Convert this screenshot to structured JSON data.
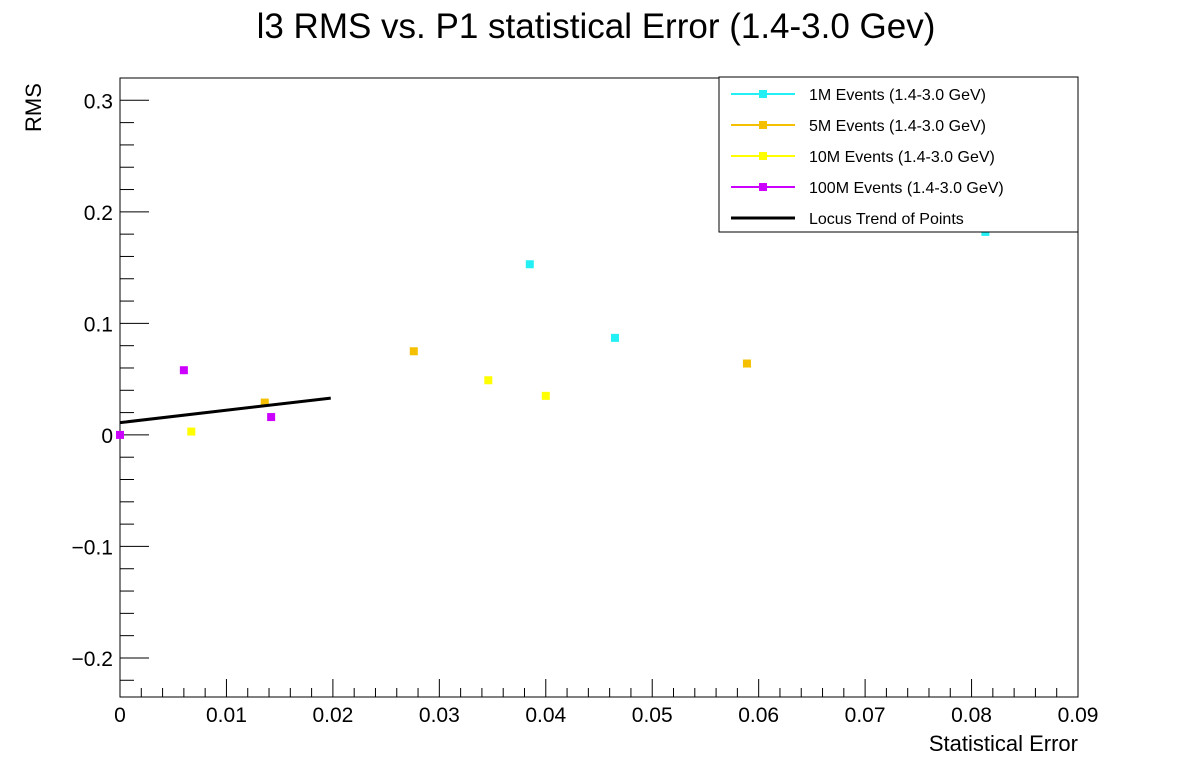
{
  "chart_data": {
    "type": "scatter",
    "title": "l3 RMS vs. P1 statistical Error (1.4-3.0 Gev)",
    "xlabel": "Statistical Error",
    "ylabel": "RMS",
    "xlim": [
      0,
      0.09
    ],
    "ylim": [
      -0.235,
      0.32
    ],
    "x_ticks": [
      0,
      0.01,
      0.02,
      0.03,
      0.04,
      0.05,
      0.06,
      0.07,
      0.08,
      0.09
    ],
    "x_tick_labels": [
      "0",
      "0.01",
      "0.02",
      "0.03",
      "0.04",
      "0.05",
      "0.06",
      "0.07",
      "0.08",
      "0.09"
    ],
    "y_ticks": [
      -0.2,
      -0.1,
      0,
      0.1,
      0.2,
      0.3
    ],
    "y_tick_labels": [
      "−0.2",
      "−0.1",
      "0",
      "0.1",
      "0.2",
      "0.3"
    ],
    "legend_position": "top-right",
    "series": [
      {
        "name": "1M Events (1.4-3.0 GeV)",
        "color": "#22f0f5",
        "points": [
          [
            0.0385,
            0.153
          ],
          [
            0.0465,
            0.087
          ],
          [
            0.0813,
            0.182
          ]
        ]
      },
      {
        "name": "5M Events (1.4-3.0 GeV)",
        "color": "#f5c000",
        "points": [
          [
            0.0136,
            0.029
          ],
          [
            0.0276,
            0.075
          ],
          [
            0.0589,
            0.064
          ]
        ]
      },
      {
        "name": "10M Events (1.4-3.0 GeV)",
        "color": "#ffff00",
        "points": [
          [
            0.0067,
            0.003
          ],
          [
            0.0346,
            0.049
          ],
          [
            0.04,
            0.035
          ]
        ]
      },
      {
        "name": "100M Events (1.4-3.0 GeV)",
        "color": "#cc00ff",
        "points": [
          [
            0.0,
            0.0
          ],
          [
            0.006,
            0.058
          ],
          [
            0.0142,
            0.016
          ]
        ]
      }
    ],
    "trend_line": {
      "name": "Locus Trend of Points",
      "color": "#000000",
      "points": [
        [
          0.0,
          0.011
        ],
        [
          0.0198,
          0.033
        ]
      ]
    }
  }
}
